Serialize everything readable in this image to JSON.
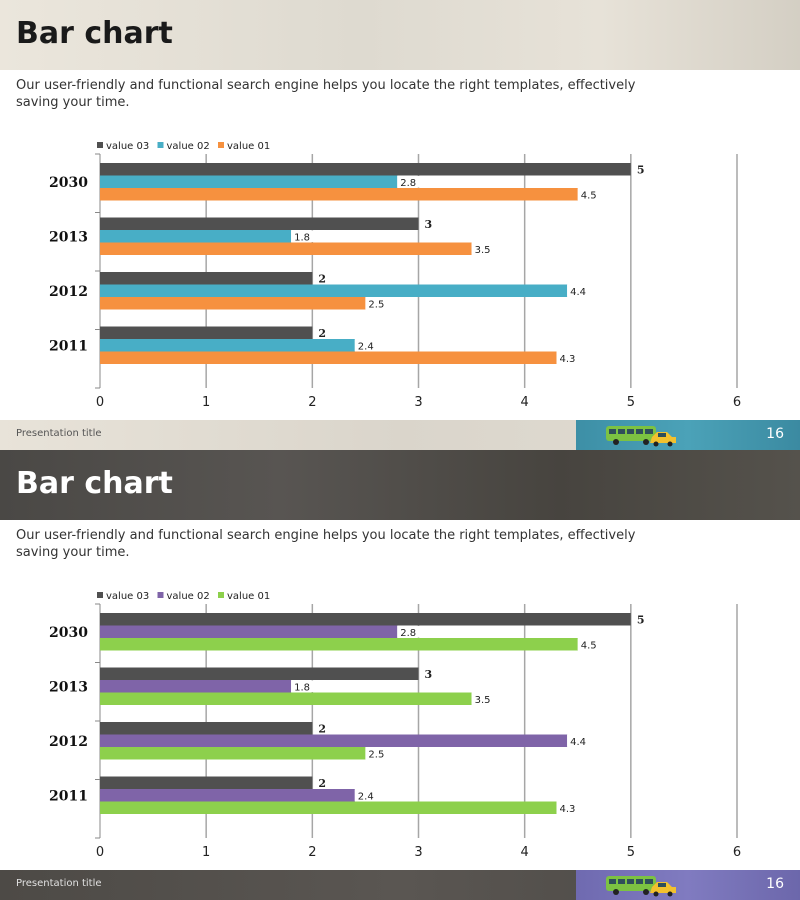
{
  "slides": [
    {
      "title": "Bar chart",
      "subtitle": "Our user-friendly and functional search engine helps you locate the right templates, effectively saving your time.",
      "footer_label": "Presentation title",
      "page_number": "16",
      "theme": {
        "series_colors": {
          "value 03": "#505050",
          "value 02": "#48aec6",
          "value 01": "#f6913f"
        }
      }
    },
    {
      "title": "Bar chart",
      "subtitle": "Our user-friendly and functional search engine helps you locate the right templates, effectively saving your time.",
      "footer_label": "Presentation title",
      "page_number": "16",
      "theme": {
        "series_colors": {
          "value 03": "#505050",
          "value 02": "#7f64a8",
          "value 01": "#8dd04c"
        }
      }
    }
  ],
  "chart_data": [
    {
      "type": "bar",
      "orientation": "horizontal",
      "title": "",
      "xlabel": "",
      "ylabel": "",
      "categories": [
        "2030",
        "2013",
        "2012",
        "2011"
      ],
      "series": [
        {
          "name": "value 03",
          "values": [
            5,
            3,
            2,
            2
          ]
        },
        {
          "name": "value 02",
          "values": [
            2.8,
            1.8,
            4.4,
            2.4
          ]
        },
        {
          "name": "value 01",
          "values": [
            4.5,
            3.5,
            2.5,
            4.3
          ]
        }
      ],
      "legend_order": [
        "value 03",
        "value 02",
        "value 01"
      ],
      "legend_position": "top-left",
      "xlim": [
        0,
        6
      ],
      "xticks": [
        "0",
        "1",
        "2",
        "3",
        "4",
        "5",
        "6"
      ],
      "grid": "vertical",
      "data_labels": true
    },
    {
      "type": "bar",
      "orientation": "horizontal",
      "title": "",
      "xlabel": "",
      "ylabel": "",
      "categories": [
        "2030",
        "2013",
        "2012",
        "2011"
      ],
      "series": [
        {
          "name": "value 03",
          "values": [
            5,
            3,
            2,
            2
          ]
        },
        {
          "name": "value 02",
          "values": [
            2.8,
            1.8,
            4.4,
            2.4
          ]
        },
        {
          "name": "value 01",
          "values": [
            4.5,
            3.5,
            2.5,
            4.3
          ]
        }
      ],
      "legend_order": [
        "value 03",
        "value 02",
        "value 01"
      ],
      "legend_position": "top-left",
      "xlim": [
        0,
        6
      ],
      "xticks": [
        "0",
        "1",
        "2",
        "3",
        "4",
        "5",
        "6"
      ],
      "grid": "vertical",
      "data_labels": true
    }
  ]
}
